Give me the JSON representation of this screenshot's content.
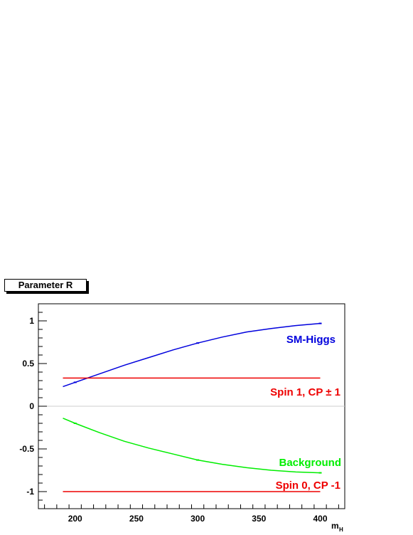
{
  "chart_data": {
    "type": "line",
    "title": "Parameter R",
    "xlabel": "m",
    "xlabel_sub": "H",
    "ylabel": "",
    "xlim": [
      170,
      420
    ],
    "ylim": [
      -1.2,
      1.2
    ],
    "x_ticks": [
      200,
      250,
      300,
      350,
      400
    ],
    "x_tick_labels": [
      "200",
      "250",
      "300",
      "350",
      "400"
    ],
    "y_ticks": [
      -1,
      -0.5,
      0,
      0.5,
      1
    ],
    "y_tick_labels": [
      "-1",
      "-0.5",
      "0",
      "0.5",
      "1"
    ],
    "grid": false,
    "zero_line": true,
    "series": [
      {
        "name": "SM-Higgs",
        "color": "#0000dd",
        "x": [
          190,
          200,
          220,
          240,
          260,
          280,
          300,
          320,
          340,
          360,
          380,
          400
        ],
        "y": [
          0.23,
          0.28,
          0.38,
          0.48,
          0.57,
          0.66,
          0.74,
          0.81,
          0.87,
          0.91,
          0.945,
          0.97
        ]
      },
      {
        "name": "Spin 1, CP ± 1",
        "color": "#ee0000",
        "x": [
          190,
          400
        ],
        "y": [
          0.33,
          0.33
        ]
      },
      {
        "name": "Background",
        "color": "#00ee00",
        "x": [
          190,
          200,
          220,
          240,
          260,
          280,
          300,
          320,
          340,
          360,
          380,
          400
        ],
        "y": [
          -0.14,
          -0.2,
          -0.31,
          -0.41,
          -0.49,
          -0.56,
          -0.63,
          -0.68,
          -0.72,
          -0.75,
          -0.77,
          -0.78
        ]
      },
      {
        "name": "Spin 0, CP -1",
        "color": "#ee0000",
        "x": [
          190,
          400
        ],
        "y": [
          -1.0,
          -1.0
        ]
      }
    ],
    "annotations": [
      {
        "text": "SM-Higgs",
        "color": "#0000dd"
      },
      {
        "text": "Spin 1, CP ± 1",
        "color": "#ee0000"
      },
      {
        "text": "Background",
        "color": "#00ee00"
      },
      {
        "text": "Spin 0, CP -1",
        "color": "#ee0000"
      }
    ]
  }
}
